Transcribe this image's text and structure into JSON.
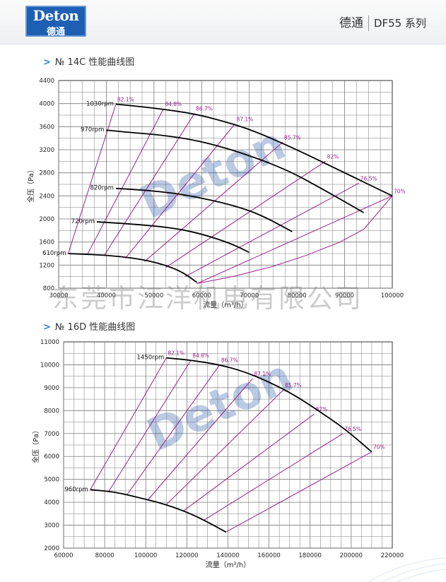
{
  "header": {
    "logo_en": "Deton",
    "logo_cn": "德通",
    "brand": "德通",
    "series": "DF55 系列"
  },
  "sections": [
    {
      "arrow": ">",
      "title": "№ 14C 性能曲线图"
    },
    {
      "arrow": ">",
      "title": "№ 16D 性能曲线图"
    }
  ],
  "watermark": {
    "logo_text": "Deton",
    "company_text": "东莞市江洋机电有限公司"
  },
  "colors": {
    "curve": "#000000",
    "efficiency": "#9b1f8d",
    "grid": "#7a7a7a",
    "watermark": "#2a5aa8"
  },
  "chart_data": [
    {
      "type": "line",
      "xlabel": "流量（m³/h）",
      "ylabel": "全压（Pa）",
      "xlim": [
        30000,
        100000
      ],
      "ylim": [
        800,
        4400
      ],
      "xticks": [
        30000,
        40000,
        50000,
        60000,
        70000,
        80000,
        90000,
        100000
      ],
      "yticks": [
        800,
        1200,
        1600,
        2000,
        2400,
        2800,
        3200,
        3600,
        4000,
        4400
      ],
      "grid": true,
      "series": [
        {
          "name": "1030rpm",
          "x": [
            42000,
            47000,
            52000,
            58000,
            63000,
            70000,
            79000,
            90000,
            100000
          ],
          "y": [
            3990,
            3950,
            3900,
            3830,
            3730,
            3560,
            3240,
            2800,
            2400
          ]
        },
        {
          "name": "970rpm",
          "x": [
            40000,
            45000,
            51000,
            57000,
            62000,
            69000,
            78000,
            86000,
            94000
          ],
          "y": [
            3540,
            3500,
            3460,
            3390,
            3300,
            3130,
            2850,
            2490,
            2110
          ]
        },
        {
          "name": "820rpm",
          "x": [
            42000,
            48000,
            54000,
            59000,
            66000,
            72000,
            79000
          ],
          "y": [
            2530,
            2500,
            2450,
            2380,
            2250,
            2090,
            1780
          ]
        },
        {
          "name": "720rpm",
          "x": [
            38000,
            44000,
            50000,
            55000,
            60000,
            66000,
            70000
          ],
          "y": [
            1950,
            1920,
            1880,
            1830,
            1740,
            1580,
            1420
          ]
        },
        {
          "name": "610rpm",
          "x": [
            32000,
            38000,
            43000,
            48000,
            52000,
            56000,
            59000
          ],
          "y": [
            1400,
            1380,
            1350,
            1290,
            1210,
            1080,
            900
          ]
        }
      ],
      "efficiency_lines": [
        {
          "label": "82.1%",
          "x": [
            32000,
            42000
          ],
          "y": [
            1400,
            3990
          ]
        },
        {
          "label": "84.8%",
          "x": [
            36000,
            52000
          ],
          "y": [
            1380,
            3910
          ]
        },
        {
          "label": "86.7%",
          "x": [
            39500,
            58500
          ],
          "y": [
            1360,
            3830
          ]
        },
        {
          "label": "87.1%",
          "x": [
            44000,
            67000
          ],
          "y": [
            1320,
            3650
          ]
        },
        {
          "label": "85.7%",
          "x": [
            48000,
            77000
          ],
          "y": [
            1260,
            3330
          ]
        },
        {
          "label": "82%",
          "x": [
            52500,
            86000
          ],
          "y": [
            1160,
            3000
          ]
        },
        {
          "label": "76.5%",
          "x": [
            56500,
            93000
          ],
          "y": [
            1000,
            2620
          ]
        },
        {
          "label": "70%",
          "x": [
            59000,
            100000
          ],
          "y": [
            880,
            2400
          ]
        }
      ],
      "min_line": {
        "x": [
          59000,
          67000,
          75000,
          82000,
          89000,
          94000,
          100000
        ],
        "y": [
          880,
          1010,
          1180,
          1370,
          1600,
          1820,
          2400
        ]
      }
    },
    {
      "type": "line",
      "xlabel": "流量（m³/h）",
      "ylabel": "全压（Pa）",
      "xlim": [
        60000,
        220000
      ],
      "ylim": [
        2000,
        11000
      ],
      "xticks": [
        60000,
        80000,
        100000,
        120000,
        140000,
        160000,
        180000,
        200000,
        220000
      ],
      "yticks": [
        2000,
        3000,
        4000,
        5000,
        6000,
        7000,
        8000,
        9000,
        10000,
        11000
      ],
      "grid": true,
      "series": [
        {
          "name": "1450rpm",
          "x": [
            110000,
            122000,
            136000,
            148000,
            160000,
            172000,
            184000,
            197000,
            210000
          ],
          "y": [
            10300,
            10200,
            10000,
            9700,
            9250,
            8700,
            8000,
            7200,
            6200
          ]
        },
        {
          "name": "960rpm",
          "x": [
            73000,
            85000,
            97000,
            110000,
            122000,
            132000,
            139000
          ],
          "y": [
            4550,
            4450,
            4200,
            3900,
            3500,
            3050,
            2700
          ]
        }
      ],
      "efficiency_lines": [
        {
          "label": "82.1%",
          "x": [
            73000,
            110000
          ],
          "y": [
            4550,
            10300
          ]
        },
        {
          "label": "84.8%",
          "x": [
            82000,
            122000
          ],
          "y": [
            4480,
            10200
          ]
        },
        {
          "label": "86.7%",
          "x": [
            91000,
            136000
          ],
          "y": [
            4350,
            10000
          ]
        },
        {
          "label": "87.1%",
          "x": [
            101000,
            152000
          ],
          "y": [
            4100,
            9400
          ]
        },
        {
          "label": "85.7%",
          "x": [
            110000,
            167000
          ],
          "y": [
            3900,
            8900
          ]
        },
        {
          "label": "82%",
          "x": [
            118000,
            182000
          ],
          "y": [
            3600,
            7850
          ]
        },
        {
          "label": "76.5%",
          "x": [
            128000,
            196000
          ],
          "y": [
            3200,
            7000
          ]
        },
        {
          "label": "70%",
          "x": [
            139000,
            210000
          ],
          "y": [
            2700,
            6200
          ]
        }
      ]
    }
  ]
}
